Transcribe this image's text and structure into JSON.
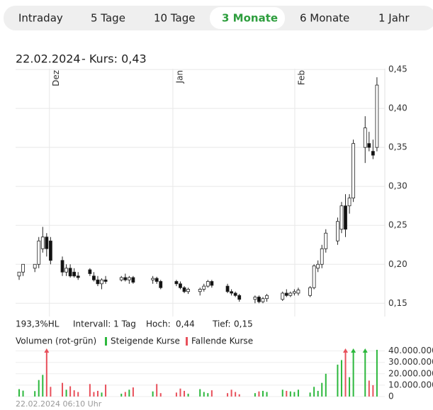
{
  "tabs": {
    "items": [
      "Intraday",
      "5 Tage",
      "10 Tage",
      "3 Monate",
      "6 Monate",
      "1 Jahr"
    ],
    "active": 3
  },
  "header": {
    "date": "22.02.2024",
    "price": "- Kurs: 0,43"
  },
  "stats": {
    "range": "193,3%HL",
    "interval": "Intervall: 1 Tag",
    "high_label": "Hoch:",
    "high": "0,44",
    "low_label": "Tief:",
    "low": "0,15"
  },
  "chart_data": {
    "type": "candlestick",
    "x": [
      0,
      1,
      4,
      5,
      6,
      7,
      8,
      11,
      12,
      13,
      14,
      15,
      18,
      19,
      20,
      21,
      22,
      26,
      27,
      28,
      29,
      34,
      35,
      36,
      40,
      41,
      42,
      43,
      46,
      47,
      48,
      49,
      53,
      54,
      55,
      56,
      60,
      61,
      62,
      63,
      67,
      68,
      69,
      70,
      71,
      74,
      75,
      76,
      77,
      78,
      81,
      82,
      83,
      84,
      85,
      88,
      89,
      90,
      91
    ],
    "open": [
      0.185,
      0.19,
      0.195,
      0.2,
      0.22,
      0.235,
      0.23,
      0.205,
      0.19,
      0.195,
      0.19,
      0.185,
      0.193,
      0.185,
      0.18,
      0.175,
      0.18,
      0.18,
      0.183,
      0.18,
      0.183,
      0.18,
      0.182,
      0.178,
      0.178,
      0.175,
      0.17,
      0.165,
      0.165,
      0.168,
      0.172,
      0.178,
      0.172,
      0.165,
      0.163,
      0.16,
      0.155,
      0.158,
      0.152,
      0.156,
      0.155,
      0.163,
      0.16,
      0.163,
      0.163,
      0.16,
      0.17,
      0.195,
      0.2,
      0.22,
      0.23,
      0.245,
      0.275,
      0.275,
      0.285,
      0.35,
      0.355,
      0.345,
      0.35
    ],
    "high": [
      0.19,
      0.2,
      0.2,
      0.235,
      0.248,
      0.24,
      0.235,
      0.21,
      0.2,
      0.2,
      0.195,
      0.19,
      0.195,
      0.19,
      0.185,
      0.182,
      0.185,
      0.185,
      0.188,
      0.185,
      0.185,
      0.185,
      0.184,
      0.18,
      0.18,
      0.178,
      0.172,
      0.17,
      0.17,
      0.175,
      0.18,
      0.18,
      0.175,
      0.168,
      0.165,
      0.162,
      0.16,
      0.16,
      0.158,
      0.162,
      0.165,
      0.168,
      0.165,
      0.168,
      0.17,
      0.172,
      0.2,
      0.205,
      0.225,
      0.245,
      0.26,
      0.28,
      0.29,
      0.29,
      0.36,
      0.39,
      0.37,
      0.36,
      0.44
    ],
    "low": [
      0.18,
      0.185,
      0.19,
      0.195,
      0.215,
      0.21,
      0.2,
      0.185,
      0.185,
      0.183,
      0.183,
      0.18,
      0.185,
      0.178,
      0.172,
      0.168,
      0.175,
      0.178,
      0.178,
      0.175,
      0.175,
      0.175,
      0.175,
      0.168,
      0.172,
      0.168,
      0.163,
      0.162,
      0.16,
      0.165,
      0.17,
      0.17,
      0.163,
      0.16,
      0.158,
      0.152,
      0.15,
      0.15,
      0.15,
      0.152,
      0.153,
      0.158,
      0.158,
      0.16,
      0.16,
      0.158,
      0.168,
      0.19,
      0.195,
      0.215,
      0.225,
      0.24,
      0.235,
      0.265,
      0.28,
      0.33,
      0.345,
      0.335,
      0.345
    ],
    "close": [
      0.19,
      0.2,
      0.2,
      0.23,
      0.235,
      0.22,
      0.205,
      0.19,
      0.195,
      0.185,
      0.185,
      0.183,
      0.188,
      0.18,
      0.175,
      0.18,
      0.178,
      0.183,
      0.18,
      0.183,
      0.177,
      0.182,
      0.178,
      0.17,
      0.175,
      0.17,
      0.165,
      0.168,
      0.168,
      0.172,
      0.178,
      0.173,
      0.165,
      0.163,
      0.16,
      0.155,
      0.158,
      0.152,
      0.156,
      0.16,
      0.163,
      0.16,
      0.163,
      0.165,
      0.167,
      0.17,
      0.198,
      0.2,
      0.22,
      0.24,
      0.255,
      0.275,
      0.245,
      0.285,
      0.355,
      0.375,
      0.35,
      0.34,
      0.43
    ],
    "xlim": [
      -0.9,
      93
    ],
    "xticks": [
      {
        "value": 7.7,
        "label": "Dez"
      },
      {
        "value": 39.1,
        "label": "Jan"
      },
      {
        "value": 70.1,
        "label": "Feb"
      }
    ],
    "ylim": [
      0.133,
      0.451
    ],
    "yticks": [
      {
        "value": 0.15,
        "label": "0,15"
      },
      {
        "value": 0.2,
        "label": "0,20"
      },
      {
        "value": 0.25,
        "label": "0,25"
      },
      {
        "value": 0.3,
        "label": "0,30"
      },
      {
        "value": 0.35,
        "label": "0,35"
      },
      {
        "value": 0.4,
        "label": "0,40"
      },
      {
        "value": 0.45,
        "label": "0,45"
      }
    ],
    "grid": true,
    "rising_color": "#ffffff",
    "falling_color": "#111111",
    "volume": {
      "title": "Volumen (rot-grün)",
      "rising_label": "Steigende Kurse",
      "falling_label": "Fallende Kurse",
      "rising_color": "#2db83d",
      "falling_color": "#e8505b",
      "values": [
        6500000,
        5200000,
        4800000,
        14500000,
        19000000,
        52000000,
        8500000,
        12000000,
        6000000,
        9000000,
        5500000,
        4000000,
        11000000,
        4000000,
        5000000,
        3500000,
        10500000,
        2500000,
        4000000,
        6000000,
        8000000,
        4500000,
        11000000,
        3000000,
        3500000,
        7000000,
        5000000,
        2500000,
        6500000,
        4000000,
        3000000,
        5500000,
        3000000,
        6000000,
        4000000,
        2000000,
        3000000,
        4500000,
        5000000,
        4000000,
        6000000,
        5000000,
        4500000,
        4000000,
        6000000,
        3500000,
        8500000,
        5000000,
        12000000,
        20000000,
        28000000,
        32000000,
        45000000,
        17000000,
        44000000,
        46000000,
        14000000,
        10000000,
        41000000
      ],
      "ylim": [
        0,
        41000000
      ],
      "yticks": [
        {
          "value": 0,
          "label": "0"
        },
        {
          "value": 10000000,
          "label": "10.000.000"
        },
        {
          "value": 20000000,
          "label": "20.000.000"
        },
        {
          "value": 30000000,
          "label": "30.000.000"
        },
        {
          "value": 40000000,
          "label": "40.000.000"
        }
      ]
    }
  },
  "footer": "22.02.2024 06:10 Uhr"
}
